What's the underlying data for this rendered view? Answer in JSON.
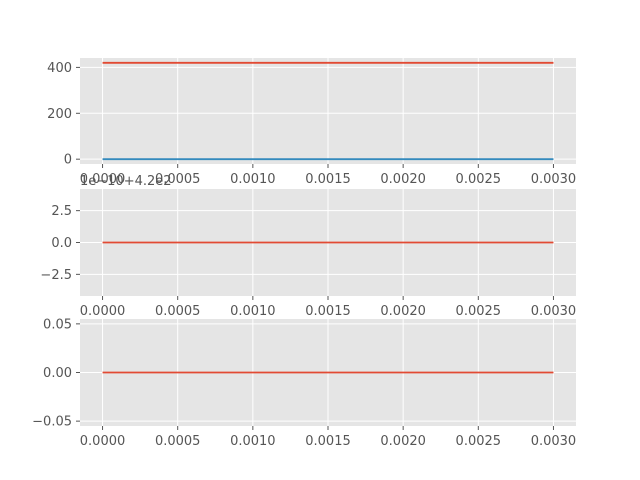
{
  "chart_data": [
    {
      "type": "line",
      "x": [
        0.0,
        0.003
      ],
      "series": [
        {
          "color": "#e24a33",
          "values": [
            420,
            420
          ]
        },
        {
          "color": "#348abd",
          "values": [
            0,
            0
          ]
        }
      ],
      "xlim": [
        -0.00015,
        0.00315
      ],
      "ylim": [
        -21,
        441
      ],
      "xticks": [
        0.0,
        0.0005,
        0.001,
        0.0015,
        0.002,
        0.0025,
        0.003
      ],
      "xtick_labels": [
        "0.0000",
        "0.0005",
        "0.0010",
        "0.0015",
        "0.0020",
        "0.0025",
        "0.0030"
      ],
      "yticks": [
        0,
        200,
        400
      ],
      "ytick_labels": [
        "0",
        "200",
        "400"
      ],
      "grid": true,
      "style": "ggplot"
    },
    {
      "type": "line",
      "x": [
        0.0,
        0.003
      ],
      "series": [
        {
          "color": "#e24a33",
          "values": [
            0,
            0
          ]
        }
      ],
      "xlim": [
        -0.00015,
        0.00315
      ],
      "ylim": [
        -4.2,
        4.2
      ],
      "xticks": [
        0.0,
        0.0005,
        0.001,
        0.0015,
        0.002,
        0.0025,
        0.003
      ],
      "xtick_labels": [
        "0.0000",
        "0.0005",
        "0.0010",
        "0.0015",
        "0.0020",
        "0.0025",
        "0.0030"
      ],
      "yticks": [
        -2.5,
        0.0,
        2.5
      ],
      "ytick_labels": [
        "−2.5",
        "0.0",
        "2.5"
      ],
      "offset_text": "1e−10+4.2e2",
      "grid": true,
      "style": "ggplot"
    },
    {
      "type": "line",
      "x": [
        0.0,
        0.003
      ],
      "series": [
        {
          "color": "#e24a33",
          "values": [
            0,
            0
          ]
        }
      ],
      "xlim": [
        -0.00015,
        0.00315
      ],
      "ylim": [
        -0.055,
        0.055
      ],
      "xticks": [
        0.0,
        0.0005,
        0.001,
        0.0015,
        0.002,
        0.0025,
        0.003
      ],
      "xtick_labels": [
        "0.0000",
        "0.0005",
        "0.0010",
        "0.0015",
        "0.0020",
        "0.0025",
        "0.0030"
      ],
      "yticks": [
        -0.05,
        0.0,
        0.05
      ],
      "ytick_labels": [
        "−0.05",
        "0.00",
        "0.05"
      ],
      "grid": true,
      "style": "ggplot"
    }
  ]
}
